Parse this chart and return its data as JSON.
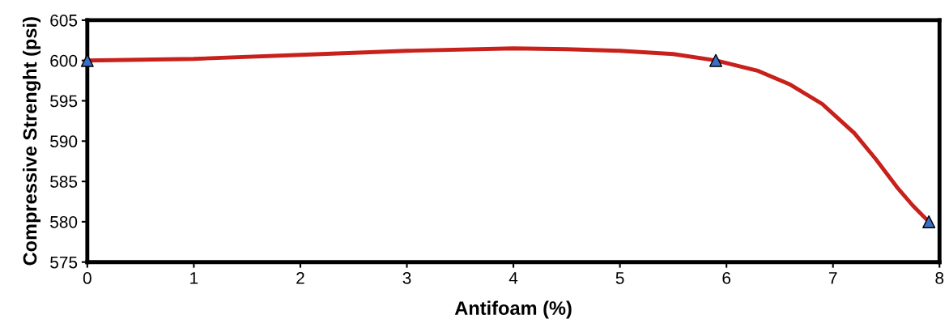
{
  "chart_data": {
    "type": "line",
    "xlabel": "Antifoam (%)",
    "ylabel": "Compressive Strenght (psi)",
    "series": [
      {
        "color": "#c8211b",
        "marker": "none",
        "x": [
          0,
          1,
          2,
          3,
          4,
          4.5,
          5,
          5.5,
          5.9,
          6.3,
          6.6,
          6.9,
          7.2,
          7.4,
          7.6,
          7.75,
          7.9
        ],
        "values": [
          600,
          600.2,
          600.7,
          601.2,
          601.5,
          601.4,
          601.2,
          600.8,
          600,
          598.7,
          597,
          594.6,
          591,
          587.8,
          584.3,
          582,
          580
        ]
      },
      {
        "type": "scatter",
        "color": "#3b6fc4",
        "marker": "triangle",
        "x": [
          0,
          5.9,
          7.9
        ],
        "values": [
          600,
          600,
          580
        ]
      }
    ],
    "xlim": [
      0,
      8
    ],
    "xticks": [
      0,
      1,
      2,
      3,
      4,
      5,
      6,
      7,
      8
    ],
    "ylim": [
      575,
      605
    ],
    "yticks": [
      575,
      580,
      585,
      590,
      595,
      600,
      605
    ],
    "grid": false,
    "legend": false,
    "line_style": "solid"
  }
}
